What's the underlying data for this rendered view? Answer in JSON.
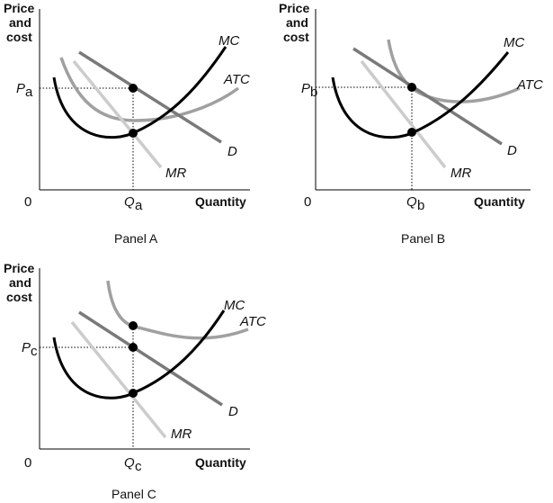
{
  "panels": [
    {
      "y_axis_line1": "Price",
      "y_axis_line2": "and",
      "y_axis_line3": "cost",
      "x_axis_label": "Quantity",
      "origin": "0",
      "price_letter": "P",
      "price_sub": "a",
      "qty_letter": "Q",
      "qty_sub": "a",
      "mc_label": "MC",
      "atc_label": "ATC",
      "d_label": "D",
      "mr_label": "MR",
      "caption": "Panel A"
    },
    {
      "y_axis_line1": "Price",
      "y_axis_line2": "and",
      "y_axis_line3": "cost",
      "x_axis_label": "Quantity",
      "origin": "0",
      "price_letter": "P",
      "price_sub": "b",
      "qty_letter": "Q",
      "qty_sub": "b",
      "mc_label": "MC",
      "atc_label": "ATC",
      "d_label": "D",
      "mr_label": "MR",
      "caption": "Panel B"
    },
    {
      "y_axis_line1": "Price",
      "y_axis_line2": "and",
      "y_axis_line3": "cost",
      "x_axis_label": "Quantity",
      "origin": "0",
      "price_letter": "P",
      "price_sub": "c",
      "qty_letter": "Q",
      "qty_sub": "c",
      "mc_label": "MC",
      "atc_label": "ATC",
      "d_label": "D",
      "mr_label": "MR",
      "caption": "Panel C"
    }
  ],
  "colors": {
    "mc": "#000000",
    "atc": "#a0a0a0",
    "demand": "#7a7a7a",
    "mr": "#cccccc",
    "axes": "#000000"
  }
}
